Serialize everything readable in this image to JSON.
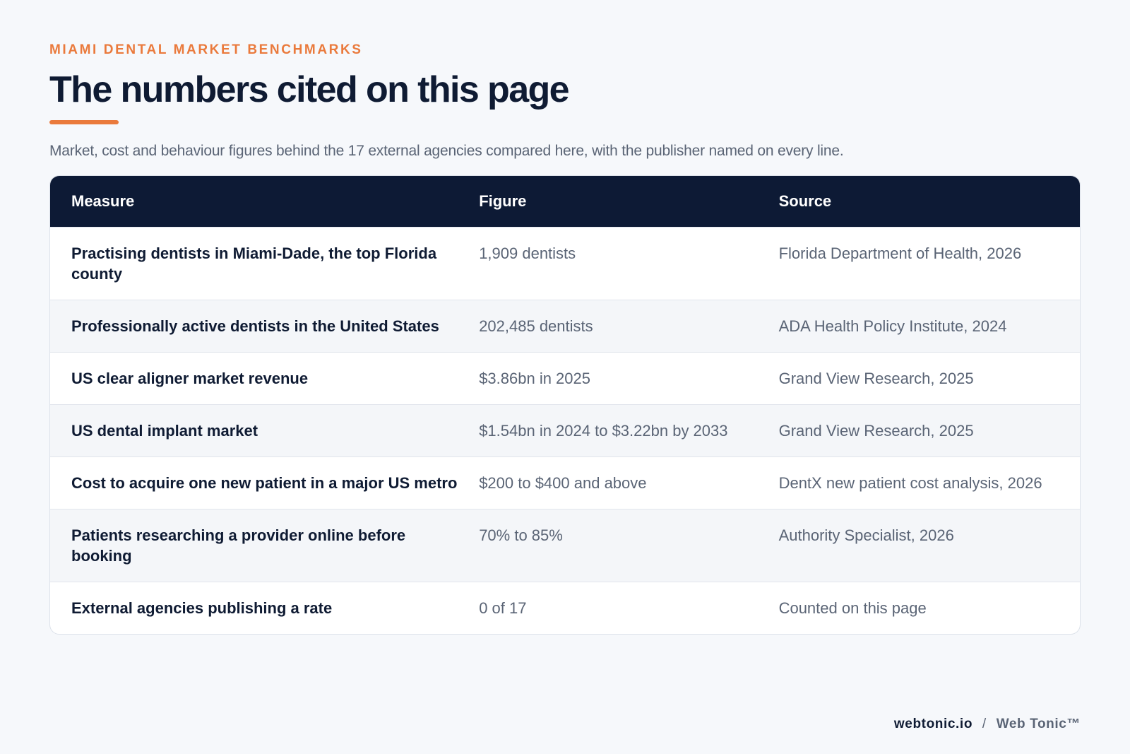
{
  "header": {
    "eyebrow": "MIAMI DENTAL MARKET BENCHMARKS",
    "title": "The numbers cited on this page",
    "subtitle": "Market, cost and behaviour figures behind the 17 external agencies compared here, with the publisher named on every line."
  },
  "table": {
    "columns": [
      "Measure",
      "Figure",
      "Source"
    ],
    "rows": [
      {
        "measure": "Practising dentists in Miami-Dade, the top Florida county",
        "figure": "1,909 dentists",
        "source": "Florida Department of Health, 2026"
      },
      {
        "measure": "Professionally active dentists in the United States",
        "figure": "202,485 dentists",
        "source": "ADA Health Policy Institute, 2024"
      },
      {
        "measure": "US clear aligner market revenue",
        "figure": "$3.86bn in 2025",
        "source": "Grand View Research, 2025"
      },
      {
        "measure": "US dental implant market",
        "figure": "$1.54bn in 2024 to $3.22bn by 2033",
        "source": "Grand View Research, 2025"
      },
      {
        "measure": "Cost to acquire one new patient in a major US metro",
        "figure": "$200 to $400 and above",
        "source": "DentX new patient cost analysis, 2026"
      },
      {
        "measure": "Patients researching a provider online before booking",
        "figure": "70% to 85%",
        "source": "Authority Specialist, 2026"
      },
      {
        "measure": "External agencies publishing a rate",
        "figure": "0 of 17",
        "source": "Counted on this page"
      }
    ]
  },
  "footer": {
    "domain": "webtonic.io",
    "separator": "/",
    "brand": "Web Tonic™"
  }
}
